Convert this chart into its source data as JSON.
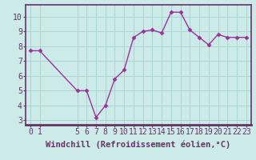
{
  "x": [
    0,
    1,
    5,
    6,
    7,
    8,
    9,
    10,
    11,
    12,
    13,
    14,
    15,
    16,
    17,
    18,
    19,
    20,
    21,
    22,
    23
  ],
  "y": [
    7.7,
    7.7,
    5.0,
    5.0,
    3.2,
    4.0,
    5.8,
    6.4,
    8.6,
    9.0,
    9.1,
    8.9,
    10.3,
    10.3,
    9.1,
    8.6,
    8.1,
    8.8,
    8.6,
    8.6,
    8.6
  ],
  "line_color": "#993399",
  "marker": "D",
  "marker_size": 2.5,
  "bg_color": "#cceae8",
  "grid_color": "#aad4d0",
  "axis_color": "#663366",
  "spine_color": "#663366",
  "xlabel": "Windchill (Refroidissement éolien,°C)",
  "xlabel_fontsize": 7.5,
  "xticks": [
    0,
    1,
    5,
    6,
    7,
    8,
    9,
    10,
    11,
    12,
    13,
    14,
    15,
    16,
    17,
    18,
    19,
    20,
    21,
    22,
    23
  ],
  "yticks": [
    3,
    4,
    5,
    6,
    7,
    8,
    9,
    10
  ],
  "ylim": [
    2.7,
    10.8
  ],
  "xlim": [
    -0.5,
    23.5
  ],
  "tick_fontsize": 7,
  "linewidth": 1.0
}
